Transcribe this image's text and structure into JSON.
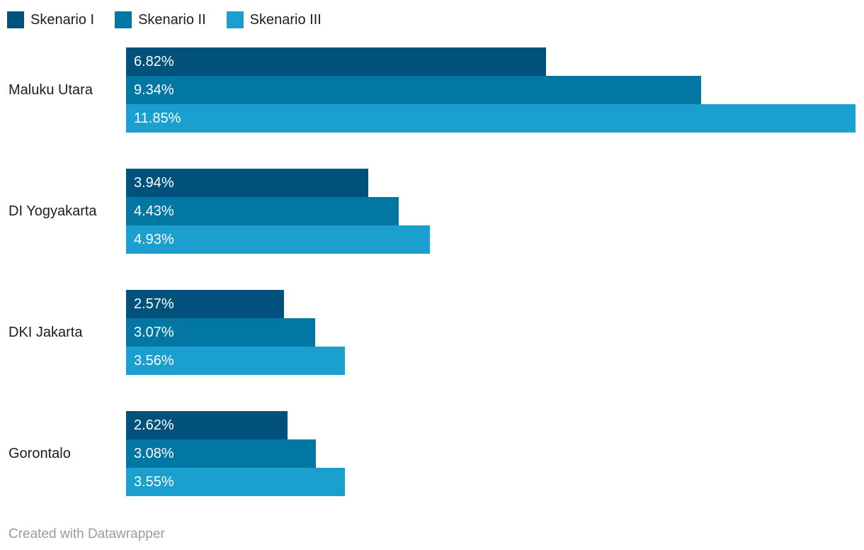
{
  "legend": {
    "items": [
      {
        "label": "Skenario I",
        "color": "#00527c"
      },
      {
        "label": "Skenario II",
        "color": "#0277a4"
      },
      {
        "label": "Skenario III",
        "color": "#1a9fce"
      }
    ]
  },
  "chart_data": {
    "type": "bar",
    "orientation": "horizontal",
    "title": "",
    "xlabel": "",
    "ylabel": "",
    "xlim": [
      0,
      11.85
    ],
    "grid": false,
    "legend_position": "top-left",
    "value_suffix": "%",
    "categories": [
      "Maluku Utara",
      "DI Yogyakarta",
      "DKI Jakarta",
      "Gorontalo"
    ],
    "series": [
      {
        "name": "Skenario I",
        "color": "#00527c",
        "values": [
          6.82,
          3.94,
          2.57,
          2.62
        ],
        "labels": [
          "6.82%",
          "3.94%",
          "2.57%",
          "2.62%"
        ]
      },
      {
        "name": "Skenario II",
        "color": "#0277a4",
        "values": [
          9.34,
          4.43,
          3.07,
          3.08
        ],
        "labels": [
          "9.34%",
          "4.43%",
          "3.07%",
          "3.08%"
        ]
      },
      {
        "name": "Skenario III",
        "color": "#1a9fce",
        "values": [
          11.85,
          4.93,
          3.56,
          3.55
        ],
        "labels": [
          "11.85%",
          "4.93%",
          "3.56%",
          "3.55%"
        ]
      }
    ]
  },
  "footer": {
    "credit": "Created with Datawrapper"
  }
}
